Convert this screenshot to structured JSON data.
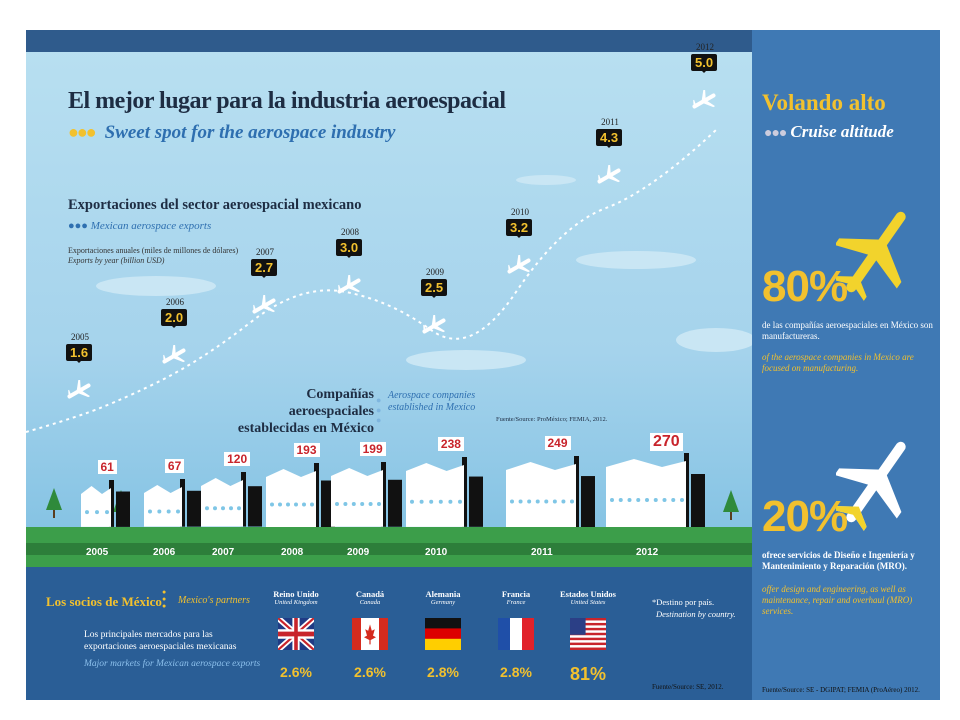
{
  "title_es": "El mejor lugar para la industria aeroespacial",
  "title_en": "Sweet spot for the aerospace industry",
  "exports": {
    "title_es": "Exportaciones del sector aeroespacial mexicano",
    "title_en": "Mexican aerospace exports",
    "note_es": "Exportaciones anuales (miles de millones de dólares)",
    "note_en": "Exports by year (billion USD)",
    "points": [
      {
        "year": "2005",
        "value": "1.6"
      },
      {
        "year": "2006",
        "value": "2.0"
      },
      {
        "year": "2007",
        "value": "2.7"
      },
      {
        "year": "2008",
        "value": "3.0"
      },
      {
        "year": "2009",
        "value": "2.5"
      },
      {
        "year": "2010",
        "value": "3.2"
      },
      {
        "year": "2011",
        "value": "4.3"
      },
      {
        "year": "2012",
        "value": "5.0"
      }
    ]
  },
  "companies": {
    "title_es": "Compañías aeroespaciales establecidas en México",
    "title_en": "Aerospace companies established in Mexico",
    "source": "Fuente/Source: ProMéxico; FEMIA, 2012.",
    "items": [
      {
        "year": "2005",
        "count": "61"
      },
      {
        "year": "2006",
        "count": "67"
      },
      {
        "year": "2007",
        "count": "120"
      },
      {
        "year": "2008",
        "count": "193"
      },
      {
        "year": "2009",
        "count": "199"
      },
      {
        "year": "2010",
        "count": "238"
      },
      {
        "year": "2011",
        "count": "249"
      },
      {
        "year": "2012",
        "count": "270"
      }
    ]
  },
  "partners": {
    "title_es": "Los socios de México",
    "title_en": "Mexico's partners",
    "desc_es": "Los principales mercados para las exportaciones aeroespaciales mexicanas",
    "desc_en": "Major markets for Mexican aerospace exports",
    "dest_es": "*Destino por país.",
    "dest_en": "Destination by country.",
    "source": "Fuente/Source: SE, 2012.",
    "countries": [
      {
        "name_es": "Reino Unido",
        "name_en": "United Kingdom",
        "pct": "2.6%",
        "flag": "uk-flag"
      },
      {
        "name_es": "Canadá",
        "name_en": "Canada",
        "pct": "2.6%",
        "flag": "canada-flag"
      },
      {
        "name_es": "Alemania",
        "name_en": "Germany",
        "pct": "2.8%",
        "flag": "germany-flag"
      },
      {
        "name_es": "Francia",
        "name_en": "France",
        "pct": "2.8%",
        "flag": "france-flag"
      },
      {
        "name_es": "Estados Unidos",
        "name_en": "United States",
        "pct": "81%",
        "flag": "usa-flag"
      }
    ]
  },
  "sidebar": {
    "title_es": "Volando alto",
    "title_en": "Cruise altitude",
    "stat1_pct": "80%",
    "stat1_es": "de las compañías aeroespaciales en México son manufactureras.",
    "stat1_en": "of the aerospace companies in Mexico are focused on manufacturing.",
    "stat2_pct": "20%",
    "stat2_es": "ofrece servicios de Diseño e Ingeniería y Mantenimiento y Reparación (MRO).",
    "stat2_en": "offer design and engineering, as well as maintenance, repair and overhaul (MRO) services.",
    "source": "Fuente/Source: SE - DGIPAT; FEMIA (ProAéreo) 2012."
  },
  "colors": {
    "sky_top": "#a9d7ee",
    "sky_bottom": "#cfe9f5",
    "grass": "#3c9e4a",
    "panel_blue": "#2a5e96",
    "sidebar_blue": "#3f79b4",
    "accent_yellow": "#f2c12e",
    "label_red": "#c8242b"
  },
  "icons": [
    "airplane-icon",
    "factory-icon",
    "tree-icon",
    "cloud-icon"
  ]
}
